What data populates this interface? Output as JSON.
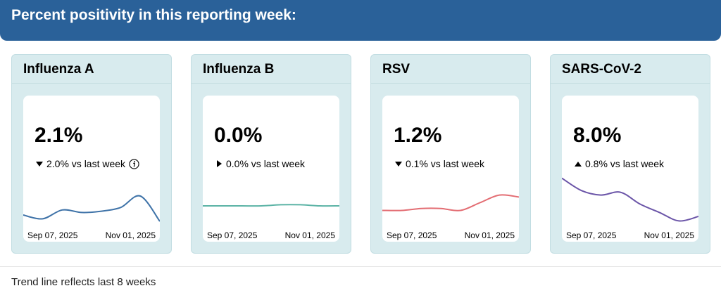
{
  "header": {
    "title": "Percent positivity in this reporting week:"
  },
  "cards": [
    {
      "name": "Influenza A",
      "value": "2.1%",
      "direction": "down",
      "change": "2.0% vs last week",
      "has_info": true,
      "start_date": "Sep 07, 2025",
      "end_date": "Nov 01, 2025",
      "color": "#3f73a8",
      "trend": [
        2.6,
        2.3,
        3.0,
        2.8,
        2.9,
        3.2,
        4.1,
        2.1
      ]
    },
    {
      "name": "Influenza B",
      "value": "0.0%",
      "direction": "flat",
      "change": "0.0% vs last week",
      "has_info": false,
      "start_date": "Sep 07, 2025",
      "end_date": "Nov 01, 2025",
      "color": "#5bb3a5",
      "trend": [
        0.0,
        0.0,
        0.0,
        0.0,
        0.1,
        0.1,
        0.0,
        0.0
      ]
    },
    {
      "name": "RSV",
      "value": "1.2%",
      "direction": "down",
      "change": "0.1% vs last week",
      "has_info": false,
      "start_date": "Sep 07, 2025",
      "end_date": "Nov 01, 2025",
      "color": "#e36d73",
      "trend": [
        0.5,
        0.5,
        0.6,
        0.6,
        0.5,
        0.9,
        1.3,
        1.2
      ]
    },
    {
      "name": "SARS-CoV-2",
      "value": "8.0%",
      "direction": "up",
      "change": "0.8% vs last week",
      "has_info": false,
      "start_date": "Sep 07, 2025",
      "end_date": "Nov 01, 2025",
      "color": "#6b55a8",
      "trend": [
        14.8,
        12.6,
        11.8,
        12.3,
        10.2,
        8.7,
        7.2,
        8.0
      ]
    }
  ],
  "footnote": "Trend line reflects last 8 weeks"
}
